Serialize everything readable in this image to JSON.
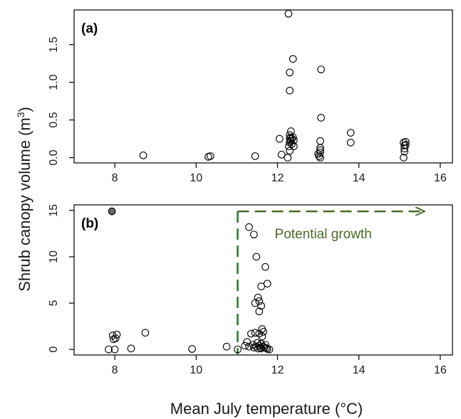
{
  "chart_data": [
    {
      "type": "scatter",
      "panel_label": "(a)",
      "xlim": [
        7,
        16.3
      ],
      "ylim": [
        -0.07,
        1.96
      ],
      "xticks": [
        8,
        10,
        12,
        14,
        16
      ],
      "yticks": [
        0.0,
        0.5,
        1.0,
        1.5
      ],
      "ytick_labels": [
        "0.0",
        "0.5",
        "1.0",
        "1.5"
      ],
      "x": [
        8.7,
        10.3,
        10.35,
        11.45,
        12.05,
        12.1,
        12.25,
        12.28,
        12.3,
        12.3,
        12.3,
        12.32,
        12.32,
        12.33,
        12.35,
        12.35,
        12.38,
        12.4,
        12.4,
        12.3,
        12.3,
        12.3,
        12.38,
        13.0,
        13.02,
        13.05,
        13.05,
        13.05,
        13.05,
        13.05,
        13.07,
        13.07,
        13.8,
        13.8,
        15.1,
        15.12,
        15.12,
        15.15,
        15.15,
        15.1,
        15.12
      ],
      "y": [
        0.03,
        0.01,
        0.02,
        0.02,
        0.25,
        0.04,
        0.0,
        0.15,
        0.2,
        0.25,
        0.3,
        0.22,
        0.27,
        0.35,
        0.18,
        0.25,
        0.27,
        0.23,
        0.15,
        0.09,
        0.89,
        1.13,
        1.31,
        0.05,
        0.02,
        0.07,
        0.1,
        0.0,
        0.22,
        0.13,
        0.53,
        1.17,
        0.33,
        0.2,
        0.2,
        0.16,
        0.08,
        0.21,
        0.17,
        0.0,
        0.12
      ],
      "y_extra": {
        "x": 12.27,
        "y": 1.91
      }
    },
    {
      "type": "scatter",
      "panel_label": "(b)",
      "xlim": [
        7,
        16.3
      ],
      "ylim": [
        -0.6,
        15.6
      ],
      "xticks": [
        8,
        10,
        12,
        14,
        16
      ],
      "yticks": [
        0,
        5,
        10,
        15
      ],
      "ytick_labels": [
        "0",
        "5",
        "10",
        "15"
      ],
      "x": [
        7.85,
        7.95,
        7.97,
        8.0,
        8.02,
        8.05,
        8.4,
        8.75,
        9.9,
        10.75,
        11.02,
        11.2,
        11.25,
        11.3,
        11.35,
        11.4,
        11.42,
        11.45,
        11.48,
        11.5,
        11.52,
        11.55,
        11.55,
        11.58,
        11.6,
        11.6,
        11.62,
        11.65,
        11.68,
        11.7,
        11.72,
        11.75,
        11.8,
        11.3,
        11.42,
        11.48,
        11.52,
        11.55,
        11.6,
        11.7,
        11.75,
        11.45,
        11.55,
        11.6,
        11.62,
        11.65
      ],
      "y": [
        0.0,
        1.5,
        1.1,
        0.0,
        1.2,
        1.6,
        0.1,
        1.8,
        0.05,
        0.3,
        0.0,
        0.4,
        0.8,
        0.3,
        1.7,
        0.5,
        0.2,
        1.8,
        0.3,
        0.7,
        0.1,
        0.4,
        1.7,
        0.2,
        0.6,
        0.1,
        1.4,
        0.3,
        0.2,
        0.5,
        0.15,
        0.05,
        0.0,
        13.2,
        12.4,
        10.0,
        5.6,
        4.1,
        6.8,
        8.9,
        7.1,
        5.0,
        5.2,
        4.7,
        2.2,
        1.9
      ],
      "highlight": {
        "x": 7.93,
        "y": 14.9
      },
      "threshold_x": 11.02,
      "arrow_to_x": 15.6,
      "arrow_y": 14.9,
      "annotation": "Potential growth"
    }
  ],
  "axes": {
    "ylabel_text": "Shrub canopy volume  (m",
    "ylabel_sup": "3",
    "ylabel_close": ")",
    "xlabel": "Mean July temperature (°C)"
  },
  "colors": {
    "threshold": "#2e7d32",
    "arrow": "#4a6b2a",
    "highlight_fill": "#666666"
  }
}
